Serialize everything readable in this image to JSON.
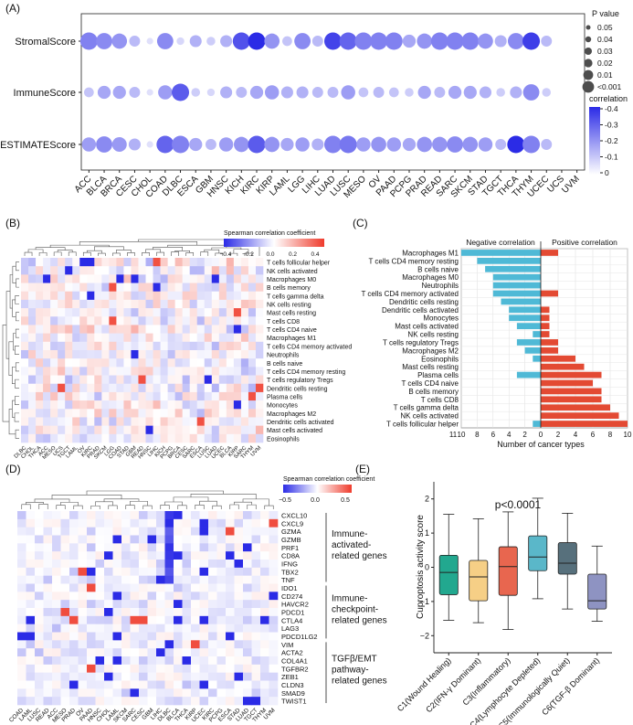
{
  "panels": {
    "a": "(A)",
    "b": "(B)",
    "c": "(C)",
    "d": "(D)",
    "e": "(E)"
  },
  "colors": {
    "neg": "#2b2be6",
    "pos": "#ef3b2c",
    "white": "#ffffff",
    "cyan": "#4fb9d6",
    "red": "#e34a33",
    "box": [
      "#22a88f",
      "#f6cf86",
      "#e8664f",
      "#5ab7c9",
      "#57707c",
      "#8e93c2"
    ]
  },
  "chart_data": [
    {
      "type": "scatter",
      "panel": "A",
      "rows": [
        "StromalScore",
        "ImmuneScore",
        "ESTIMATEScore"
      ],
      "columns": [
        "ACC",
        "BLCA",
        "BRCA",
        "CESC",
        "CHOL",
        "COAD",
        "DLBC",
        "ESCA",
        "GBM",
        "HNSC",
        "KICH",
        "KIRC",
        "KIRP",
        "LAML",
        "LGG",
        "LIHC",
        "LUAD",
        "LUSC",
        "MESO",
        "OV",
        "PAAD",
        "PCPG",
        "PRAD",
        "READ",
        "SARC",
        "SKCM",
        "STAD",
        "TGCT",
        "THCA",
        "THYM",
        "UCEC",
        "UCS",
        "UVM"
      ],
      "correlation": [
        [
          -0.22,
          -0.2,
          -0.18,
          -0.1,
          -0.02,
          -0.2,
          -0.04,
          -0.12,
          -0.06,
          -0.12,
          -0.32,
          -0.4,
          -0.18,
          -0.08,
          -0.2,
          -0.1,
          -0.35,
          -0.28,
          -0.22,
          -0.22,
          -0.22,
          -0.14,
          -0.18,
          -0.22,
          -0.22,
          -0.22,
          -0.18,
          -0.12,
          -0.2,
          -0.36,
          -0.1,
          0,
          0
        ],
        [
          -0.08,
          -0.14,
          -0.14,
          -0.1,
          -0.02,
          -0.16,
          -0.3,
          -0.06,
          -0.04,
          -0.12,
          -0.1,
          -0.14,
          -0.16,
          -0.12,
          -0.12,
          -0.1,
          -0.1,
          -0.16,
          -0.08,
          -0.1,
          -0.08,
          -0.06,
          -0.14,
          -0.1,
          -0.14,
          -0.14,
          -0.12,
          -0.06,
          -0.12,
          -0.2,
          -0.06,
          0,
          0
        ],
        [
          -0.16,
          -0.2,
          -0.17,
          -0.12,
          -0.02,
          -0.28,
          -0.22,
          -0.14,
          -0.1,
          -0.16,
          -0.18,
          -0.3,
          -0.18,
          -0.14,
          -0.16,
          -0.12,
          -0.22,
          -0.24,
          -0.16,
          -0.18,
          -0.16,
          -0.14,
          -0.18,
          -0.18,
          -0.2,
          -0.18,
          -0.16,
          -0.1,
          -0.4,
          -0.22,
          -0.1,
          0,
          0
        ]
      ],
      "size_legend": {
        "title": "P value",
        "values": [
          "0.05",
          "0.04",
          "0.03",
          "0.02",
          "0.01",
          "<0.001"
        ]
      },
      "color_legend": {
        "title": "correlation",
        "ticks": [
          "-0.4",
          "-0.3",
          "-0.2",
          "-0.1",
          "0"
        ],
        "range": [
          -0.4,
          0
        ]
      }
    },
    {
      "type": "heatmap",
      "panel": "B",
      "title": "Spearman correlation coefficient",
      "scale_ticks": [
        "−0.4",
        "−0.2",
        "0.0",
        "0.2",
        "0.4"
      ],
      "rows": [
        "T cells follicular helper",
        "NK cells activated",
        "Macrophages M0",
        "B cells memory",
        "T cells gamma delta",
        "NK cells resting",
        "Mast cells resting",
        "T cells CD8",
        "T cells CD4 naive",
        "Macrophages M1",
        "T cells CD4 memory activated",
        "Neutrophils",
        "B cells naive",
        "T cells CD4 memory resting",
        "T cells regulatory Tregs",
        "Dendritic cells resting",
        "Plasma cells",
        "Monocytes",
        "Macrophages M2",
        "Dendritic cells activated",
        "Mast cells activated",
        "Eosinophils"
      ],
      "columns": [
        "DLBC",
        "CHOL",
        "THCA",
        "ACC",
        "MESO",
        "UCS",
        "TGCT",
        "LAML",
        "OV",
        "KIRC",
        "PRAD",
        "SKCM",
        "LGG",
        "COAD",
        "STAD",
        "GBM",
        "READ",
        "HNSC",
        "LIHC",
        "KICH",
        "PCPG",
        "BRCA",
        "CESC",
        "SARC",
        "ESCA",
        "LUSC",
        "LUAD",
        "UCEC",
        "BLCA",
        "KIRP",
        "SARC",
        "THYM",
        "UVM"
      ]
    },
    {
      "type": "bar",
      "panel": "C",
      "categories": [
        "Macrophages M1",
        "T cells CD4 memory resting",
        "B cells naive",
        "Macrophages M0",
        "Neutrophils",
        "T cells CD4 memory activated",
        "Dendritic cells resting",
        "Dendritic cells activated",
        "Monocytes",
        "Mast cells activated",
        "NK cells resting",
        "T cells regulatory Tregs",
        "Macrophages M2",
        "Eosinophils",
        "Mast cells resting",
        "Plasma cells",
        "T cells CD4 naive",
        "B cells memory",
        "T cells CD8",
        "T cells gamma delta",
        "NK cells activated",
        "T cells follicular helper"
      ],
      "series": [
        {
          "name": "Negative correlation",
          "values": [
            10,
            8,
            7,
            6,
            6,
            6,
            5,
            4,
            4,
            3,
            1,
            3,
            2,
            1,
            0,
            3,
            0,
            0,
            0,
            0,
            0,
            1
          ]
        },
        {
          "name": "Positive correlation",
          "values": [
            2,
            0,
            0,
            0,
            0,
            2,
            0,
            1,
            1,
            1,
            1,
            2,
            2,
            4,
            5,
            7,
            6,
            7,
            7,
            8,
            9,
            10
          ]
        }
      ],
      "xlabel": "Number of cancer types",
      "xticks": [
        "11",
        "10",
        "8",
        "6",
        "4",
        "2",
        "0",
        "2",
        "4",
        "6",
        "8",
        "10"
      ]
    },
    {
      "type": "heatmap",
      "panel": "D",
      "title": "Spearman correlation coefficient",
      "scale_ticks": [
        "−0.5",
        "0.0",
        "0.5"
      ],
      "rows": [
        "CXCL10",
        "CXCL9",
        "GZMA",
        "GZMB",
        "PRF1",
        "CD8A",
        "IFNG",
        "TBX2",
        "TNF",
        "IDO1",
        "CD274",
        "HAVCR2",
        "PDCD1",
        "CTLA4",
        "LAG3",
        "PDCD1LG2",
        "VIM",
        "ACTA2",
        "COL4A1",
        "TGFBR2",
        "ZEB1",
        "CLDN3",
        "SMAD9",
        "TWIST1"
      ],
      "groups": [
        {
          "label": "Immune-activated-related genes",
          "lines": [
            "Immune-",
            "activated-",
            "related genes"
          ],
          "from": 0,
          "to": 8
        },
        {
          "label": "Immune-checkpoint-related genes",
          "lines": [
            "Immune-",
            "checkpoint-",
            "related genes"
          ],
          "from": 9,
          "to": 15
        },
        {
          "label": "TGFβ/EMT pathway-related genes",
          "lines": [
            "TGFβ/EMT",
            "pathway-",
            "related genes"
          ],
          "from": 16,
          "to": 23
        }
      ],
      "columns": [
        "COAD",
        "LAML",
        "LUSC",
        "READ",
        "ACC",
        "MESO",
        "PRAD",
        "OV",
        "PAAD",
        "HNSC",
        "CHOL",
        "LAML",
        "SKCM",
        "SARC",
        "CESC",
        "GBM",
        "LIHC",
        "DLBC",
        "BLCA",
        "THCA",
        "KIRP",
        "UCEC",
        "KIRC",
        "PCPG",
        "ESCA",
        "STAD",
        "LUAD",
        "TGCT",
        "THYM",
        "UVM"
      ]
    },
    {
      "type": "box",
      "panel": "E",
      "annotation": "p<0.0001",
      "ylabel": "Cuproptosis activity score",
      "yticks": [
        "2",
        "1",
        "0",
        "−1",
        "−2"
      ],
      "ylim": [
        -2.5,
        2.5
      ],
      "categories": [
        "C1(Wound Healing)",
        "C2(IFN-γ Dominant)",
        "C3(Inflammatory)",
        "C4(Lymphocyte Depleted)",
        "C5(Immunologically Quiet)",
        "C6(TGF-β Dominant)"
      ],
      "stats": [
        {
          "min": -1.55,
          "q1": -0.8,
          "median": -0.15,
          "q3": 0.35,
          "max": 1.55
        },
        {
          "min": -1.62,
          "q1": -0.98,
          "median": -0.28,
          "q3": 0.2,
          "max": 1.42
        },
        {
          "min": -1.82,
          "q1": -0.82,
          "median": 0.02,
          "q3": 0.6,
          "max": 1.62
        },
        {
          "min": -0.92,
          "q1": -0.1,
          "median": 0.3,
          "q3": 0.92,
          "max": 2.02
        },
        {
          "min": -1.22,
          "q1": -0.2,
          "median": 0.12,
          "q3": 0.72,
          "max": 1.58
        },
        {
          "min": -1.58,
          "q1": -1.22,
          "median": -0.98,
          "q3": -0.2,
          "max": 0.62
        }
      ]
    }
  ]
}
